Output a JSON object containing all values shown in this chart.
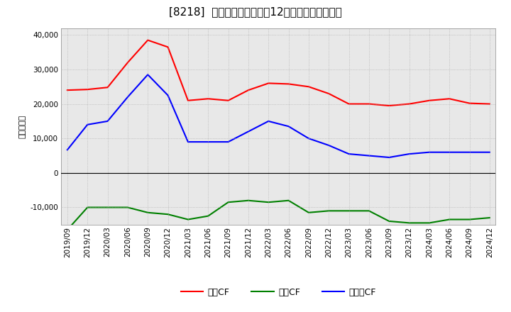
{
  "title": "[8218]  キャッシュフローの12か月移動合計の推移",
  "ylabel": "（百万円）",
  "ylim": [
    -15000,
    42000
  ],
  "yticks": [
    -10000,
    0,
    10000,
    20000,
    30000,
    40000
  ],
  "dates": [
    "2019/09",
    "2019/12",
    "2020/03",
    "2020/06",
    "2020/09",
    "2020/12",
    "2021/03",
    "2021/06",
    "2021/09",
    "2021/12",
    "2022/03",
    "2022/06",
    "2022/09",
    "2022/12",
    "2023/03",
    "2023/06",
    "2023/09",
    "2023/12",
    "2024/03",
    "2024/06",
    "2024/09",
    "2024/12"
  ],
  "operating_cf": [
    24000,
    24200,
    24800,
    32000,
    38500,
    36500,
    21000,
    21500,
    21000,
    24000,
    26000,
    25800,
    25000,
    23000,
    20000,
    20000,
    19500,
    20000,
    21000,
    21500,
    20200,
    20000
  ],
  "investing_cf": [
    -16500,
    -10000,
    -10000,
    -10000,
    -11500,
    -12000,
    -13500,
    -12500,
    -8500,
    -8000,
    -8500,
    -8000,
    -11500,
    -11000,
    -11000,
    -11000,
    -14000,
    -14500,
    -14500,
    -13500,
    -13500,
    -13000
  ],
  "free_cf": [
    6700,
    14000,
    15000,
    22000,
    28500,
    22500,
    9000,
    9000,
    9000,
    12000,
    15000,
    13500,
    10000,
    8000,
    5500,
    5000,
    4500,
    5500,
    6000,
    6000,
    6000,
    6000
  ],
  "operating_color": "#ff0000",
  "investing_color": "#008000",
  "free_color": "#0000ff",
  "plot_bg_color": "#e8e8e8",
  "fig_bg_color": "#ffffff",
  "grid_color": "#aaaaaa",
  "legend_labels": [
    "営業CF",
    "投資CF",
    "フリーCF"
  ]
}
